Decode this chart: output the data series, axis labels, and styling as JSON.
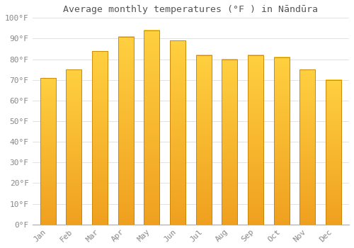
{
  "title": "Average monthly temperatures (°F ) in Nāndūra",
  "months": [
    "Jan",
    "Feb",
    "Mar",
    "Apr",
    "May",
    "Jun",
    "Jul",
    "Aug",
    "Sep",
    "Oct",
    "Nov",
    "Dec"
  ],
  "values": [
    71,
    75,
    84,
    91,
    94,
    89,
    82,
    80,
    82,
    81,
    75,
    70
  ],
  "bar_color_bottom": "#F0A020",
  "bar_color_top": "#FFD040",
  "bar_edge_color": "#C88000",
  "background_color": "#FFFFFF",
  "grid_color": "#DDDDDD",
  "text_color": "#888888",
  "ylim": [
    0,
    100
  ],
  "yticks": [
    0,
    10,
    20,
    30,
    40,
    50,
    60,
    70,
    80,
    90,
    100
  ],
  "ytick_labels": [
    "0°F",
    "10°F",
    "20°F",
    "30°F",
    "40°F",
    "50°F",
    "60°F",
    "70°F",
    "80°F",
    "90°F",
    "100°F"
  ],
  "title_fontsize": 9.5,
  "tick_fontsize": 8
}
